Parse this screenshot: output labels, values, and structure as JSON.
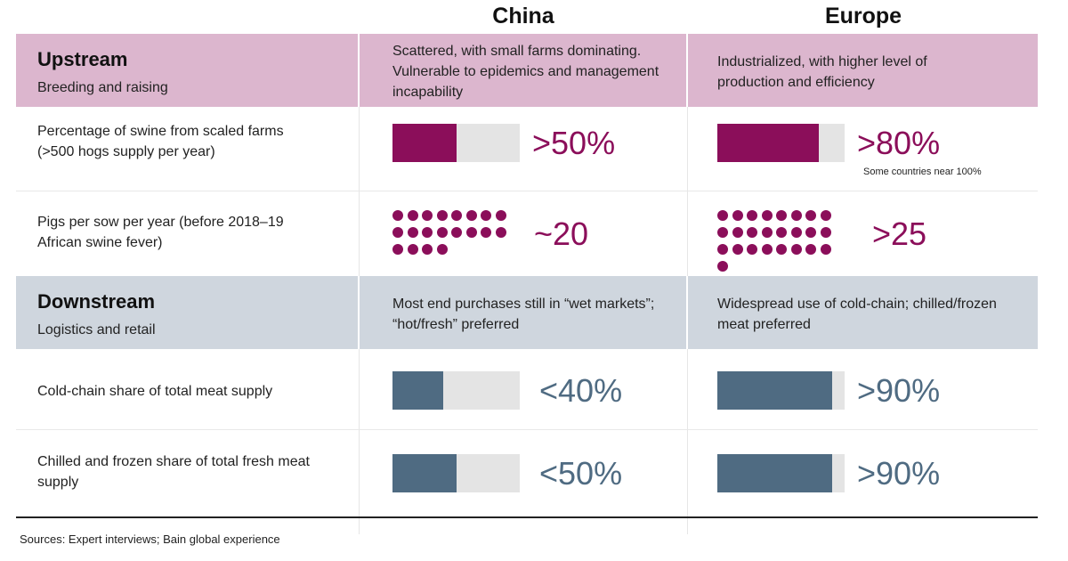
{
  "columns": {
    "china": "China",
    "europe": "Europe"
  },
  "colors": {
    "upstream_accent": "#8b0e5a",
    "downstream_accent": "#4f6b82",
    "upstream_band": "#dcb6ce",
    "downstream_band": "#cfd6de",
    "track": "#e4e4e4"
  },
  "upstream": {
    "title": "Upstream",
    "subtitle": "Breeding and raising",
    "china_desc": "Scattered, with small farms dominating. Vulnerable to epidemics and management incapability",
    "europe_desc": "Industrialized, with higher level of production and efficiency"
  },
  "downstream": {
    "title": "Downstream",
    "subtitle": "Logistics and retail",
    "china_desc": "Most end purchases still in “wet markets”; “hot/fresh” preferred",
    "europe_desc": "Widespread use of cold-chain; chilled/frozen meat preferred"
  },
  "chart_data": {
    "type": "table",
    "rows": [
      {
        "label": "Percentage of swine from scaled farms (>500 hogs supply per year)",
        "kind": "bar",
        "group": "upstream",
        "china": {
          "value": 0.5,
          "text": ">50%"
        },
        "europe": {
          "value": 0.8,
          "text": ">80%",
          "note": "Some countries near 100%"
        }
      },
      {
        "label": "Pigs per sow per year (before 2018–19 African swine fever)",
        "kind": "dots",
        "group": "upstream",
        "china": {
          "value": 20,
          "text": "~20"
        },
        "europe": {
          "value": 25,
          "text": ">25"
        }
      },
      {
        "label": "Cold-chain share of total meat supply",
        "kind": "bar",
        "group": "downstream",
        "china": {
          "value": 0.4,
          "text": "<40%"
        },
        "europe": {
          "value": 0.9,
          "text": ">90%"
        }
      },
      {
        "label": "Chilled and frozen share of total fresh meat supply",
        "kind": "bar",
        "group": "downstream",
        "china": {
          "value": 0.5,
          "text": "<50%"
        },
        "europe": {
          "value": 0.9,
          "text": ">90%"
        }
      }
    ]
  },
  "source": "Sources: Expert interviews; Bain global experience"
}
